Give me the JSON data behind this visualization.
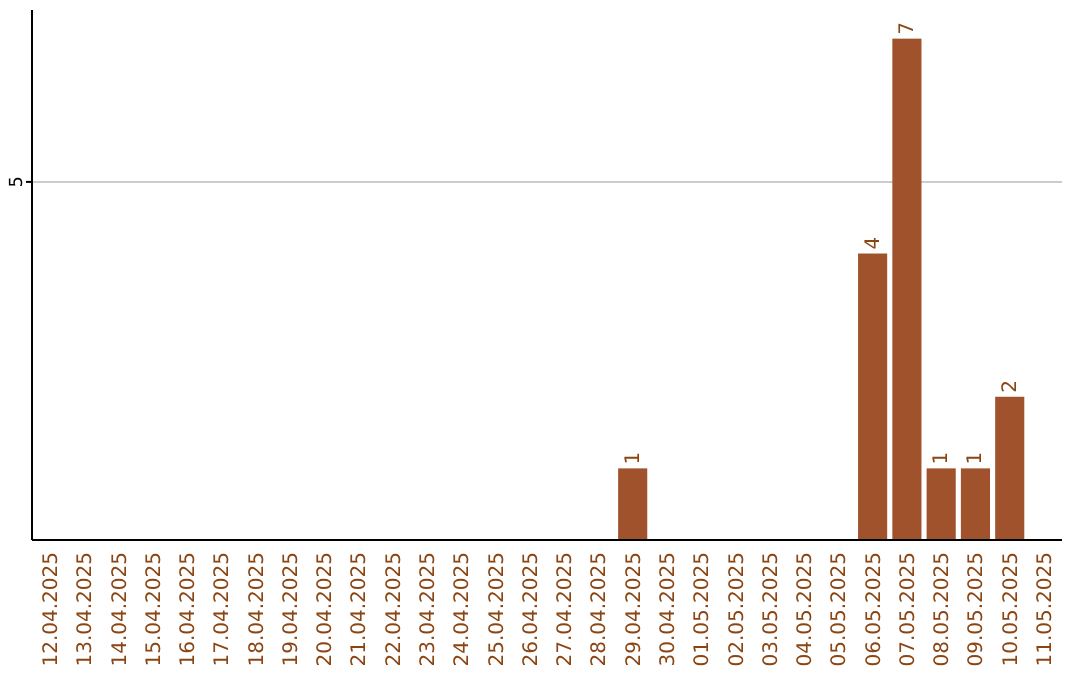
{
  "chart_data": {
    "type": "bar",
    "categories": [
      "12.04.2025",
      "13.04.2025",
      "14.04.2025",
      "15.04.2025",
      "16.04.2025",
      "17.04.2025",
      "18.04.2025",
      "19.04.2025",
      "20.04.2025",
      "21.04.2025",
      "22.04.2025",
      "23.04.2025",
      "24.04.2025",
      "25.04.2025",
      "26.04.2025",
      "27.04.2025",
      "28.04.2025",
      "29.04.2025",
      "30.04.2025",
      "01.05.2025",
      "02.05.2025",
      "03.05.2025",
      "04.05.2025",
      "05.05.2025",
      "06.05.2025",
      "07.05.2025",
      "08.05.2025",
      "09.05.2025",
      "10.05.2025",
      "11.05.2025"
    ],
    "values": [
      null,
      null,
      null,
      null,
      null,
      null,
      null,
      null,
      null,
      null,
      null,
      null,
      null,
      null,
      null,
      null,
      null,
      1,
      null,
      null,
      null,
      null,
      null,
      null,
      4,
      7,
      1,
      1,
      2,
      null
    ],
    "data_labels": true,
    "color": "#a0522d",
    "ylim": [
      0,
      7.4
    ],
    "yticks": [
      5
    ],
    "grid": "y"
  }
}
